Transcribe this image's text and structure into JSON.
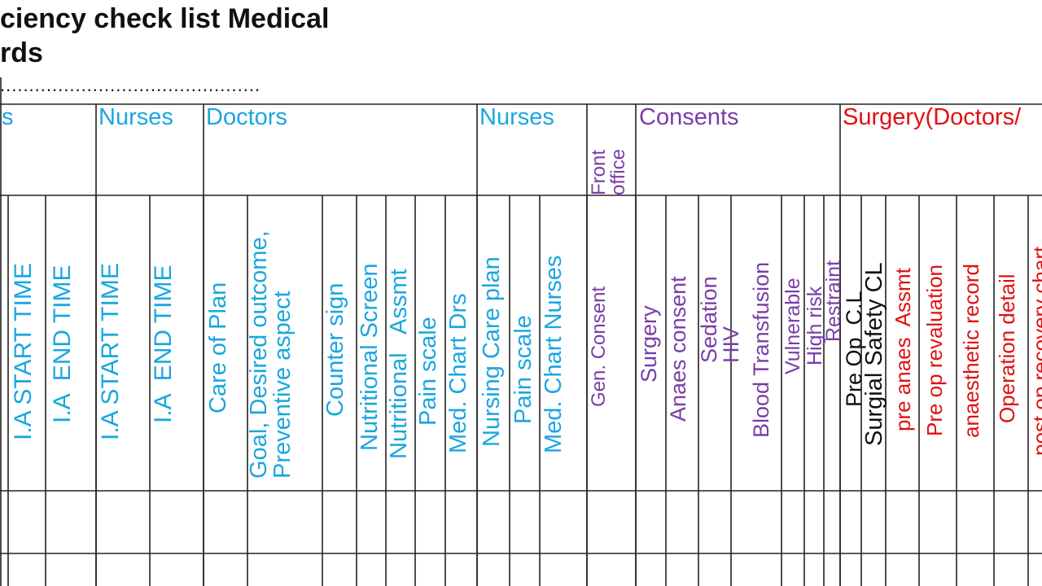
{
  "header": {
    "title_line1": "ciency check list Medical",
    "title_line2": "rds",
    "dotted_line": "............................................."
  },
  "colors": {
    "cyan": "#1aa6e0",
    "purple": "#7a3da8",
    "red": "#e01010",
    "black": "#111111"
  },
  "groups": [
    {
      "label": "s",
      "color": "cyan"
    },
    {
      "label": "Nurses",
      "color": "cyan"
    },
    {
      "label": "Doctors",
      "color": "cyan"
    },
    {
      "label": "Nurses",
      "color": "cyan"
    },
    {
      "label": "Front\noffice",
      "color": "purple"
    },
    {
      "label": "Consents",
      "color": "purple"
    },
    {
      "label": "Surgery(Doctors/",
      "color": "red"
    }
  ],
  "columns": [
    {
      "label": "I.A START TIME",
      "color": "cyan"
    },
    {
      "label": "I.A  END TIME",
      "color": "cyan"
    },
    {
      "label": "I.A START TIME",
      "color": "cyan"
    },
    {
      "label": "I.A  END TIME",
      "color": "cyan"
    },
    {
      "label": "Care of Plan",
      "color": "cyan"
    },
    {
      "label": "Goal, Desired outcome,\nPreventive aspect",
      "color": "cyan"
    },
    {
      "label": "Counter sign",
      "color": "cyan"
    },
    {
      "label": "Nutritional Screen",
      "color": "cyan"
    },
    {
      "label": "Nutritional   Assmt",
      "color": "cyan"
    },
    {
      "label": "Pain scale",
      "color": "cyan"
    },
    {
      "label": "Med. Chart Drs",
      "color": "cyan"
    },
    {
      "label": "Nursing Care plan",
      "color": "cyan"
    },
    {
      "label": "Pain scale",
      "color": "cyan"
    },
    {
      "label": "Med. Chart Nurses",
      "color": "cyan"
    },
    {
      "label": "Gen. Consent",
      "color": "purple"
    },
    {
      "label": "Surgery",
      "color": "purple"
    },
    {
      "label": "Anaes consent",
      "color": "purple"
    },
    {
      "label": "Sedation\nHIV",
      "color": "purple"
    },
    {
      "label": "Blood Transfusion",
      "color": "purple"
    },
    {
      "label": "Vulnerable",
      "color": "purple"
    },
    {
      "label": "High risk",
      "color": "purple"
    },
    {
      "label": "Restraint",
      "color": "purple"
    },
    {
      "label": "Pre Op  C.L",
      "color": "black"
    },
    {
      "label": "Surgial Safety CL",
      "color": "black"
    },
    {
      "label": "pre anaes  Assmt",
      "color": "red"
    },
    {
      "label": "Pre op revaluation",
      "color": "red"
    },
    {
      "label": "anaesthetic record",
      "color": "red"
    },
    {
      "label": "Operation detail",
      "color": "red"
    },
    {
      "label": "post op recovery chart",
      "color": "red"
    }
  ]
}
